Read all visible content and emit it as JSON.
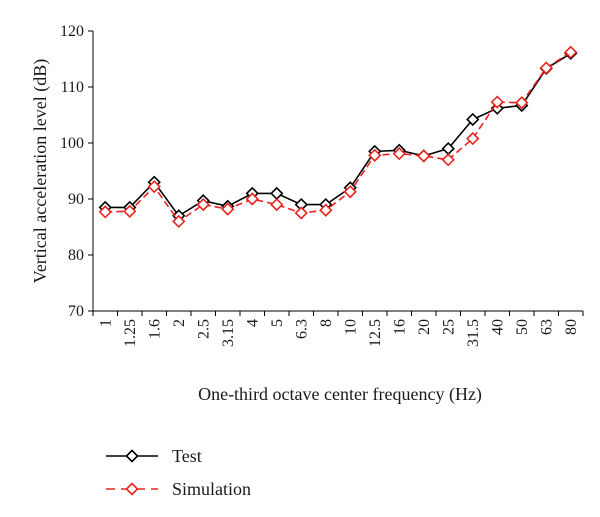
{
  "chart_data": {
    "type": "line",
    "title": "",
    "xlabel": "One-third octave center frequency (Hz)",
    "ylabel": "Vertical acceleration level (dB)",
    "ylim": [
      70,
      120
    ],
    "yticks": [
      70,
      80,
      90,
      100,
      110,
      120
    ],
    "grid": false,
    "legend_position": "bottom-left",
    "categories": [
      "1",
      "1.25",
      "1.6",
      "2",
      "2.5",
      "3.15",
      "4",
      "5",
      "6.3",
      "8",
      "10",
      "12.5",
      "16",
      "20",
      "25",
      "31.5",
      "40",
      "50",
      "63",
      "80"
    ],
    "series": [
      {
        "name": "Test",
        "color": "#000000",
        "marker": "diamond",
        "line_style": "solid",
        "values": [
          88.5,
          88.5,
          93.0,
          87.0,
          89.7,
          88.7,
          91.0,
          91.0,
          89.0,
          89.0,
          92.0,
          98.5,
          98.7,
          97.7,
          99.0,
          104.2,
          106.2,
          106.7,
          113.3,
          116.0
        ]
      },
      {
        "name": "Simulation",
        "color": "#e8231f",
        "marker": "diamond",
        "line_style": "dashed",
        "values": [
          87.7,
          87.8,
          92.2,
          86.0,
          89.0,
          88.2,
          90.0,
          89.0,
          87.5,
          88.0,
          91.3,
          97.8,
          98.1,
          97.7,
          97.0,
          100.8,
          107.3,
          107.2,
          113.4,
          116.2
        ]
      }
    ]
  }
}
